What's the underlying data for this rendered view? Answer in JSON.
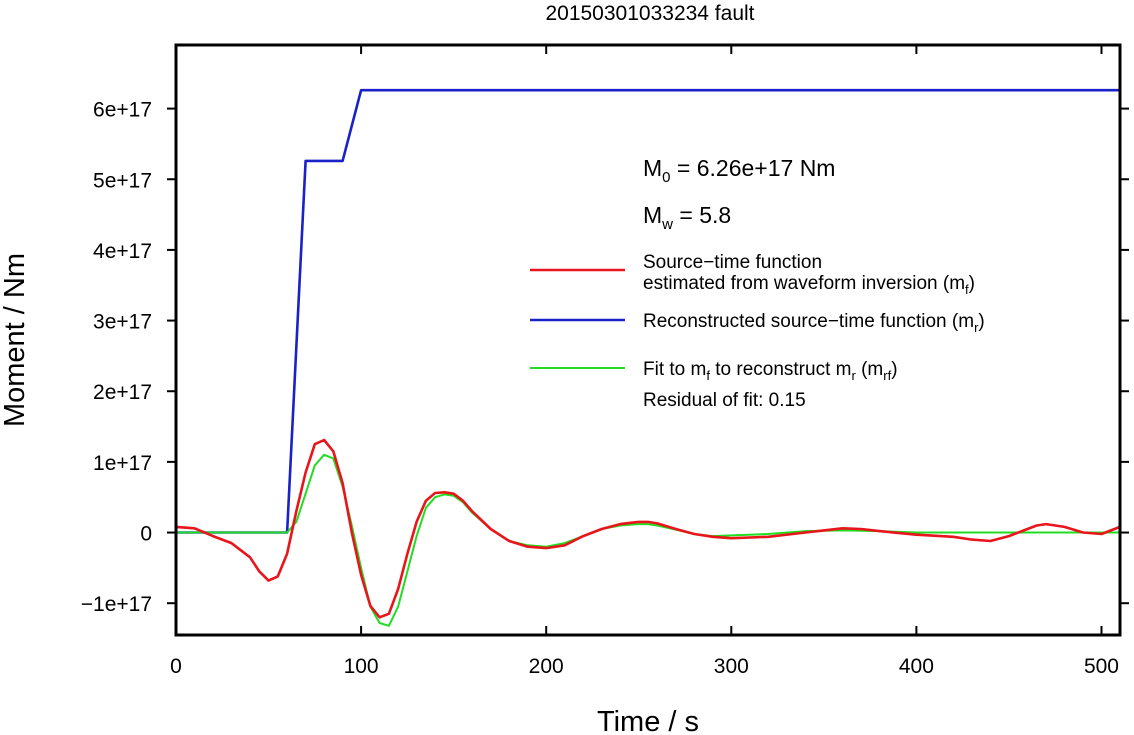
{
  "chart_data": {
    "type": "line",
    "title": "20150301033234 fault",
    "xlabel": "Time / s",
    "ylabel": "Moment / Nm",
    "xlim": [
      0,
      510
    ],
    "ylim": [
      -1.45e+17,
      6.9e+17
    ],
    "xticks": [
      0,
      100,
      200,
      300,
      400,
      500
    ],
    "xtick_labels": [
      "0",
      "100",
      "200",
      "300",
      "400",
      "500"
    ],
    "yticks": [
      -1e+17,
      0,
      1e+17,
      2e+17,
      3e+17,
      4e+17,
      5e+17,
      6e+17
    ],
    "ytick_labels": [
      "−1e+17",
      "0",
      "1e+17",
      "2e+17",
      "3e+17",
      "4e+17",
      "5e+17",
      "6e+17"
    ],
    "grid": false,
    "legend_position": "right",
    "annotations": {
      "m0": {
        "symbol": "M",
        "subscript": "0",
        "text": " = 6.26e+17 Nm"
      },
      "mw": {
        "symbol": "M",
        "subscript": "w",
        "text": " = 5.8"
      },
      "residual": "Residual of fit: 0.15"
    },
    "legend": [
      {
        "color": "#e8151b",
        "line1": "Source−time function",
        "line2_text": "estimated from waveform inversion (m",
        "line2_sub": "f",
        "line2_end": ")"
      },
      {
        "color": "#1a21c9",
        "line1_text": "Reconstructed source−time function (m",
        "line1_sub": "r",
        "line1_end": ")"
      },
      {
        "color": "#21dd21",
        "text_a": "Fit to m",
        "sub_a": "f",
        "text_b": " to reconstruct m",
        "sub_b": "r",
        "text_c": " (m",
        "sub_c": "rf",
        "text_d": ")"
      }
    ],
    "series": [
      {
        "key": "mf",
        "color": "#e8151b",
        "x": [
          0,
          10,
          20,
          30,
          40,
          45,
          50,
          55,
          60,
          65,
          70,
          75,
          80,
          85,
          90,
          95,
          100,
          105,
          110,
          115,
          120,
          125,
          130,
          135,
          140,
          145,
          150,
          155,
          160,
          170,
          180,
          190,
          200,
          210,
          220,
          230,
          240,
          250,
          255,
          260,
          270,
          280,
          290,
          300,
          320,
          340,
          350,
          360,
          370,
          380,
          400,
          420,
          430,
          440,
          450,
          460,
          465,
          470,
          480,
          490,
          500,
          510
        ],
        "y": [
          8000000000000000.0,
          6000000000000000.0,
          -5000000000000000.0,
          -1.5e+16,
          -3.5e+16,
          -5.5e+16,
          -6.8e+16,
          -6.2e+16,
          -3e+16,
          3e+16,
          8.5e+16,
          1.25e+17,
          1.31e+17,
          1.15e+17,
          7e+16,
          0,
          -6e+16,
          -1.04e+17,
          -1.2e+17,
          -1.15e+17,
          -8e+16,
          -3e+16,
          1.5e+16,
          4.5e+16,
          5.6e+16,
          5.7e+16,
          5.5e+16,
          4.5e+16,
          3e+16,
          5000000000000000.0,
          -1.2e+16,
          -2e+16,
          -2.2e+16,
          -1.8e+16,
          -5000000000000000.0,
          5000000000000000.0,
          1.2e+16,
          1.5e+16,
          1.5e+16,
          1.3e+16,
          5000000000000000.0,
          -2000000000000000.0,
          -6000000000000000.0,
          -8000000000000000.0,
          -6000000000000000.0,
          0,
          3000000000000000.0,
          6000000000000000.0,
          5000000000000000.0,
          2000000000000000.0,
          -3000000000000000.0,
          -6000000000000000.0,
          -1e+16,
          -1.2e+16,
          -5000000000000000.0,
          5000000000000000.0,
          1e+16,
          1.2e+16,
          8000000000000000.0,
          0,
          -2000000000000000.0,
          8000000000000000.0
        ]
      },
      {
        "key": "mr",
        "color": "#1a21c9",
        "x": [
          0,
          60,
          70,
          90,
          100,
          510
        ],
        "y": [
          0,
          0,
          5.26e+17,
          5.26e+17,
          6.26e+17,
          6.26e+17
        ]
      },
      {
        "key": "mrf",
        "color": "#21dd21",
        "x": [
          0,
          10,
          20,
          30,
          40,
          50,
          55,
          60,
          65,
          70,
          75,
          80,
          85,
          90,
          95,
          100,
          105,
          110,
          115,
          120,
          125,
          130,
          135,
          140,
          145,
          150,
          155,
          160,
          170,
          180,
          190,
          200,
          210,
          220,
          230,
          240,
          250,
          255,
          260,
          270,
          280,
          290,
          300,
          320,
          340,
          360,
          380,
          400,
          420,
          440,
          460,
          480,
          500,
          510
        ],
        "y": [
          0,
          0,
          0,
          0,
          0,
          0,
          0,
          0,
          1.5e+16,
          5.5e+16,
          9.5e+16,
          1.1e+17,
          1.05e+17,
          6.5e+16,
          1e+16,
          -5e+16,
          -1.05e+17,
          -1.28e+17,
          -1.32e+17,
          -1.05e+17,
          -5.5e+16,
          -5000000000000000.0,
          3.5e+16,
          5e+16,
          5.4e+16,
          5.2e+16,
          4.3e+16,
          2.8e+16,
          5000000000000000.0,
          -1.2e+16,
          -1.8e+16,
          -2e+16,
          -1.5e+16,
          -5000000000000000.0,
          5000000000000000.0,
          1e+16,
          1.2e+16,
          1.2e+16,
          1e+16,
          4000000000000000.0,
          -2000000000000000.0,
          -5000000000000000.0,
          -4000000000000000.0,
          -2000000000000000.0,
          2000000000000000.0,
          3000000000000000.0,
          2000000000000000.0,
          0,
          0,
          0,
          0,
          0,
          0,
          0
        ]
      }
    ]
  }
}
